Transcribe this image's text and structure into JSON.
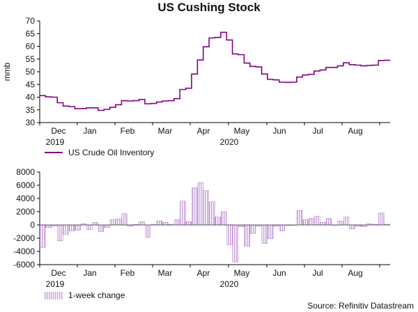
{
  "title": "US Cushing Stock",
  "source": "Source: Refinitiv Datastream",
  "colors": {
    "line": "#800080",
    "bar_fill": "#c9a0dc",
    "bar_stroke": "#9b59b6"
  },
  "chart_data": [
    {
      "type": "line",
      "name": "US Crude Oil Inventory",
      "ylabel": "mmb",
      "ylim": [
        30,
        70
      ],
      "yticks": [
        30,
        35,
        40,
        45,
        50,
        55,
        60,
        65,
        70
      ],
      "xticks": [
        "Dec",
        "Jan",
        "Feb",
        "Mar",
        "Apr",
        "May",
        "Jun",
        "Jul",
        "Aug"
      ],
      "year_labels": [
        "2019",
        "2020"
      ],
      "legend": "US Crude Oil Inventory",
      "values": [
        40.6,
        40.1,
        40.0,
        37.8,
        36.5,
        36.3,
        35.5,
        35.5,
        35.8,
        35.8,
        34.8,
        35.2,
        36.0,
        37.0,
        38.6,
        38.5,
        38.6,
        39.1,
        37.4,
        37.5,
        38.1,
        38.5,
        38.6,
        39.4,
        43.0,
        43.5,
        49.1,
        54.6,
        59.8,
        63.3,
        63.5,
        65.5,
        62.5,
        57.0,
        56.7,
        53.4,
        52.1,
        51.9,
        49.1,
        47.0,
        46.8,
        45.9,
        45.8,
        45.9,
        47.9,
        48.7,
        49.0,
        50.3,
        50.7,
        51.7,
        51.7,
        52.3,
        53.5,
        52.8,
        52.6,
        52.3,
        52.5,
        52.6,
        54.4,
        54.5
      ]
    },
    {
      "type": "bar",
      "name": "1-week change",
      "ylim": [
        -6000,
        8000
      ],
      "yticks": [
        -6000,
        -4000,
        -2000,
        0,
        2000,
        4000,
        6000,
        8000
      ],
      "xticks": [
        "Dec",
        "Jan",
        "Feb",
        "Mar",
        "Apr",
        "May",
        "Jun",
        "Jul",
        "Aug"
      ],
      "year_labels": [
        "2019",
        "2020"
      ],
      "legend": "1-week change",
      "values": [
        -3400,
        -400,
        -200,
        -2400,
        -1400,
        -900,
        -800,
        200,
        -700,
        400,
        -1000,
        -400,
        800,
        900,
        1700,
        -200,
        100,
        500,
        -1900,
        100,
        600,
        400,
        100,
        800,
        3600,
        500,
        5600,
        6400,
        5200,
        3500,
        1200,
        2000,
        -3000,
        -5600,
        -300,
        -3200,
        -1300,
        -200,
        -2800,
        -2100,
        -200,
        -900,
        -100,
        0,
        2200,
        800,
        1000,
        1300,
        400,
        1000,
        0,
        600,
        1200,
        -600,
        -200,
        -300,
        200,
        100,
        1800,
        100
      ]
    }
  ]
}
